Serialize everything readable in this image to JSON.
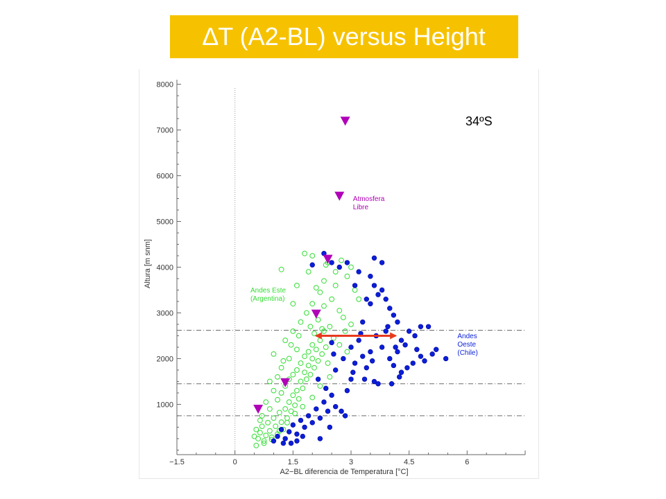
{
  "title": "∆T (A2-BL) versus Height",
  "corner_label": "34ºS",
  "colors": {
    "title_bg": "#f6c200",
    "title_fg": "#ffffff",
    "green": "#33dd33",
    "blue": "#0a1fd6",
    "magenta": "#b000b8",
    "arrow": "#e83a1e"
  },
  "chart_data": {
    "type": "scatter",
    "xlabel": "A2−BL diferencia de Temperatura [°C]",
    "ylabel": "Altura [m snm]",
    "xlim": [
      -1.5,
      7.5
    ],
    "ylim": [
      -100,
      8100
    ],
    "x_ticks": [
      -1.5,
      0,
      1.5,
      3,
      4.5,
      6
    ],
    "x_tick_labels": [
      "−1.5",
      "0",
      "1.5",
      "3",
      "4.5",
      "6"
    ],
    "y_ticks": [
      1000,
      2000,
      3000,
      4000,
      5000,
      6000,
      7000,
      8000
    ],
    "y_tick_labels": [
      "1000",
      "2000",
      "3000",
      "4000",
      "5000",
      "6000",
      "7000",
      "8000"
    ],
    "vertical_reference_x": 0,
    "horizontal_reference_y": [
      750,
      1450,
      2620
    ],
    "arrow": {
      "x_start": 2.1,
      "x_end": 4.15,
      "y": 2500
    },
    "annotations": [
      {
        "text": [
          "Atmosfera",
          "Libre"
        ],
        "x": 3.05,
        "y": 5450,
        "color": "#b000b8"
      },
      {
        "text": [
          "Andes Este",
          "(Argentina)"
        ],
        "x": 0.4,
        "y": 3450,
        "color": "#33dd33"
      },
      {
        "text": [
          "Andes",
          "Oeste",
          "(Chile)"
        ],
        "x": 5.75,
        "y": 2450,
        "color": "#0a1fd6"
      }
    ],
    "series": [
      {
        "name": "Atmosfera Libre",
        "marker": "triangle-down",
        "color": "#b000b8",
        "points": [
          [
            0.6,
            900
          ],
          [
            1.3,
            1480
          ],
          [
            2.1,
            2980
          ],
          [
            2.4,
            4180
          ],
          [
            2.7,
            5560
          ],
          [
            2.85,
            7200
          ]
        ]
      },
      {
        "name": "Andes Este (Argentina)",
        "marker": "circle-open",
        "color": "#33dd33",
        "points": [
          [
            0.5,
            300
          ],
          [
            0.55,
            450
          ],
          [
            0.6,
            250
          ],
          [
            0.65,
            380
          ],
          [
            0.7,
            520
          ],
          [
            0.75,
            200
          ],
          [
            0.8,
            320
          ],
          [
            0.85,
            600
          ],
          [
            0.9,
            420
          ],
          [
            0.95,
            280
          ],
          [
            1.0,
            700
          ],
          [
            1.05,
            520
          ],
          [
            1.1,
            350
          ],
          [
            1.15,
            820
          ],
          [
            1.2,
            610
          ],
          [
            1.25,
            450
          ],
          [
            1.3,
            900
          ],
          [
            1.35,
            700
          ],
          [
            1.4,
            1050
          ],
          [
            1.45,
            850
          ],
          [
            1.5,
            1200
          ],
          [
            1.55,
            980
          ],
          [
            1.6,
            1300
          ],
          [
            1.65,
            1120
          ],
          [
            1.7,
            1500
          ],
          [
            1.75,
            1350
          ],
          [
            1.8,
            1700
          ],
          [
            1.85,
            1550
          ],
          [
            1.9,
            1850
          ],
          [
            1.95,
            1650
          ],
          [
            2.0,
            2000
          ],
          [
            2.05,
            1800
          ],
          [
            2.1,
            2200
          ],
          [
            2.15,
            1950
          ],
          [
            2.2,
            2400
          ],
          [
            2.25,
            2100
          ],
          [
            2.3,
            2600
          ],
          [
            2.35,
            2250
          ],
          [
            2.4,
            1900
          ],
          [
            2.45,
            2700
          ],
          [
            0.7,
            750
          ],
          [
            0.9,
            900
          ],
          [
            1.1,
            1100
          ],
          [
            1.2,
            1250
          ],
          [
            1.3,
            1400
          ],
          [
            1.4,
            1550
          ],
          [
            1.5,
            1650
          ],
          [
            1.6,
            1750
          ],
          [
            1.7,
            1900
          ],
          [
            1.8,
            2050
          ],
          [
            1.9,
            2150
          ],
          [
            2.0,
            2300
          ],
          [
            1.2,
            1800
          ],
          [
            1.4,
            2000
          ],
          [
            1.6,
            2200
          ],
          [
            1.3,
            2400
          ],
          [
            1.5,
            2600
          ],
          [
            1.7,
            2800
          ],
          [
            1.85,
            3000
          ],
          [
            2.0,
            3200
          ],
          [
            2.2,
            3450
          ],
          [
            2.5,
            3300
          ],
          [
            2.6,
            3600
          ],
          [
            2.7,
            3050
          ],
          [
            2.9,
            3800
          ],
          [
            3.1,
            3500
          ],
          [
            3.0,
            4000
          ],
          [
            2.4,
            4100
          ],
          [
            2.6,
            3900
          ],
          [
            1.8,
            4300
          ],
          [
            2.0,
            4250
          ],
          [
            2.3,
            3700
          ],
          [
            1.5,
            3200
          ],
          [
            1.2,
            3950
          ],
          [
            1.6,
            3600
          ],
          [
            2.8,
            2900
          ],
          [
            2.55,
            2450
          ],
          [
            2.7,
            2300
          ],
          [
            2.9,
            2150
          ],
          [
            2.45,
            1600
          ],
          [
            2.2,
            1400
          ],
          [
            2.0,
            1150
          ],
          [
            1.75,
            950
          ],
          [
            1.55,
            800
          ],
          [
            1.35,
            600
          ],
          [
            1.15,
            420
          ],
          [
            0.95,
            230
          ],
          [
            0.75,
            150
          ],
          [
            0.55,
            100
          ],
          [
            0.65,
            650
          ],
          [
            0.8,
            1050
          ],
          [
            1.0,
            1300
          ],
          [
            1.1,
            1600
          ],
          [
            1.25,
            1950
          ],
          [
            1.45,
            2300
          ],
          [
            1.0,
            2100
          ],
          [
            0.9,
            1500
          ],
          [
            1.65,
            2500
          ],
          [
            1.95,
            2700
          ],
          [
            2.15,
            2850
          ],
          [
            2.3,
            3150
          ],
          [
            2.1,
            3550
          ],
          [
            1.9,
            3900
          ],
          [
            2.75,
            4150
          ],
          [
            2.35,
            4050
          ],
          [
            3.2,
            3300
          ],
          [
            2.85,
            2600
          ],
          [
            3.0,
            2750
          ],
          [
            2.05,
            2550
          ],
          [
            2.25,
            2650
          ]
        ]
      },
      {
        "name": "Andes Oeste (Chile)",
        "marker": "circle-filled",
        "color": "#0a1fd6",
        "points": [
          [
            1.0,
            200
          ],
          [
            1.1,
            300
          ],
          [
            1.2,
            450
          ],
          [
            1.3,
            250
          ],
          [
            1.4,
            400
          ],
          [
            1.5,
            550
          ],
          [
            1.6,
            350
          ],
          [
            1.7,
            650
          ],
          [
            1.8,
            500
          ],
          [
            1.9,
            750
          ],
          [
            2.0,
            600
          ],
          [
            2.1,
            900
          ],
          [
            2.2,
            700
          ],
          [
            2.3,
            1050
          ],
          [
            2.4,
            850
          ],
          [
            2.5,
            1200
          ],
          [
            2.6,
            950
          ],
          [
            2.75,
            850
          ],
          [
            2.9,
            1300
          ],
          [
            3.0,
            1550
          ],
          [
            2.6,
            1750
          ],
          [
            2.8,
            2000
          ],
          [
            3.0,
            2250
          ],
          [
            3.1,
            1900
          ],
          [
            3.2,
            2400
          ],
          [
            3.3,
            2050
          ],
          [
            3.4,
            1800
          ],
          [
            3.5,
            2150
          ],
          [
            3.6,
            1500
          ],
          [
            3.7,
            1450
          ],
          [
            3.8,
            2250
          ],
          [
            3.9,
            2600
          ],
          [
            4.0,
            2000
          ],
          [
            4.1,
            1850
          ],
          [
            4.2,
            2150
          ],
          [
            4.3,
            1700
          ],
          [
            4.4,
            2300
          ],
          [
            4.5,
            2600
          ],
          [
            4.6,
            1900
          ],
          [
            4.7,
            2200
          ],
          [
            4.8,
            2050
          ],
          [
            4.9,
            1950
          ],
          [
            5.0,
            2700
          ],
          [
            5.1,
            2100
          ],
          [
            5.2,
            2200
          ],
          [
            5.45,
            2000
          ],
          [
            4.8,
            2700
          ],
          [
            4.65,
            2500
          ],
          [
            4.3,
            2400
          ],
          [
            4.15,
            2250
          ],
          [
            3.3,
            2800
          ],
          [
            3.4,
            3300
          ],
          [
            3.5,
            3200
          ],
          [
            3.6,
            3600
          ],
          [
            3.7,
            3400
          ],
          [
            3.8,
            3500
          ],
          [
            3.9,
            3300
          ],
          [
            4.0,
            3100
          ],
          [
            4.1,
            2950
          ],
          [
            4.2,
            2800
          ],
          [
            3.2,
            3900
          ],
          [
            3.6,
            4200
          ],
          [
            3.8,
            4100
          ],
          [
            3.5,
            3800
          ],
          [
            3.1,
            3600
          ],
          [
            2.9,
            4100
          ],
          [
            2.7,
            4000
          ],
          [
            2.5,
            4100
          ],
          [
            2.3,
            4300
          ],
          [
            2.0,
            4050
          ],
          [
            3.95,
            2700
          ],
          [
            4.45,
            1800
          ],
          [
            3.35,
            1550
          ],
          [
            2.2,
            250
          ],
          [
            1.6,
            200
          ],
          [
            1.45,
            150
          ],
          [
            2.45,
            500
          ],
          [
            2.85,
            750
          ],
          [
            1.75,
            300
          ],
          [
            1.25,
            150
          ],
          [
            2.15,
            1550
          ],
          [
            2.35,
            1350
          ],
          [
            3.55,
            1950
          ],
          [
            4.05,
            1450
          ],
          [
            4.25,
            1600
          ],
          [
            3.25,
            2550
          ],
          [
            3.65,
            2500
          ],
          [
            2.5,
            2350
          ],
          [
            2.55,
            2100
          ],
          [
            3.05,
            1700
          ]
        ]
      }
    ]
  }
}
